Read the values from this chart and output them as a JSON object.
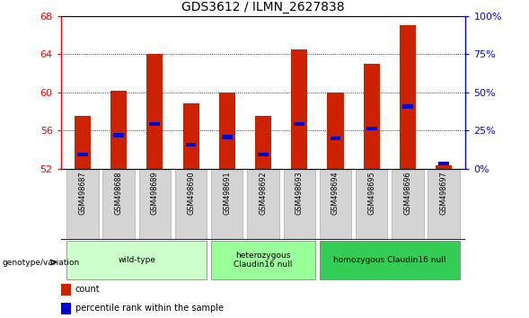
{
  "title": "GDS3612 / ILMN_2627838",
  "samples": [
    "GSM498687",
    "GSM498688",
    "GSM498689",
    "GSM498690",
    "GSM498691",
    "GSM498692",
    "GSM498693",
    "GSM498694",
    "GSM498695",
    "GSM498696",
    "GSM498697"
  ],
  "count_values": [
    57.5,
    60.2,
    64.0,
    58.8,
    60.0,
    57.5,
    64.5,
    60.0,
    63.0,
    67.0,
    52.3
  ],
  "percentile_values": [
    53.5,
    55.5,
    56.7,
    54.5,
    55.3,
    53.5,
    56.7,
    55.2,
    56.2,
    58.5,
    52.5
  ],
  "ymin": 52,
  "ymax": 68,
  "yticks": [
    52,
    56,
    60,
    64,
    68
  ],
  "right_yticks": [
    0,
    25,
    50,
    75,
    100
  ],
  "bar_color": "#cc2200",
  "percentile_color": "#0000cc",
  "bar_width": 0.45,
  "groups": [
    {
      "label": "wild-type",
      "start": 0,
      "end": 3,
      "color": "#ccffcc"
    },
    {
      "label": "heterozygous\nClaudin16 null",
      "start": 4,
      "end": 6,
      "color": "#99ff99"
    },
    {
      "label": "homozygous Claudin16 null",
      "start": 7,
      "end": 10,
      "color": "#33cc55"
    }
  ],
  "legend_count_label": "count",
  "legend_pct_label": "percentile rank within the sample",
  "genotype_label": "genotype/variation",
  "background_color": "#ffffff"
}
